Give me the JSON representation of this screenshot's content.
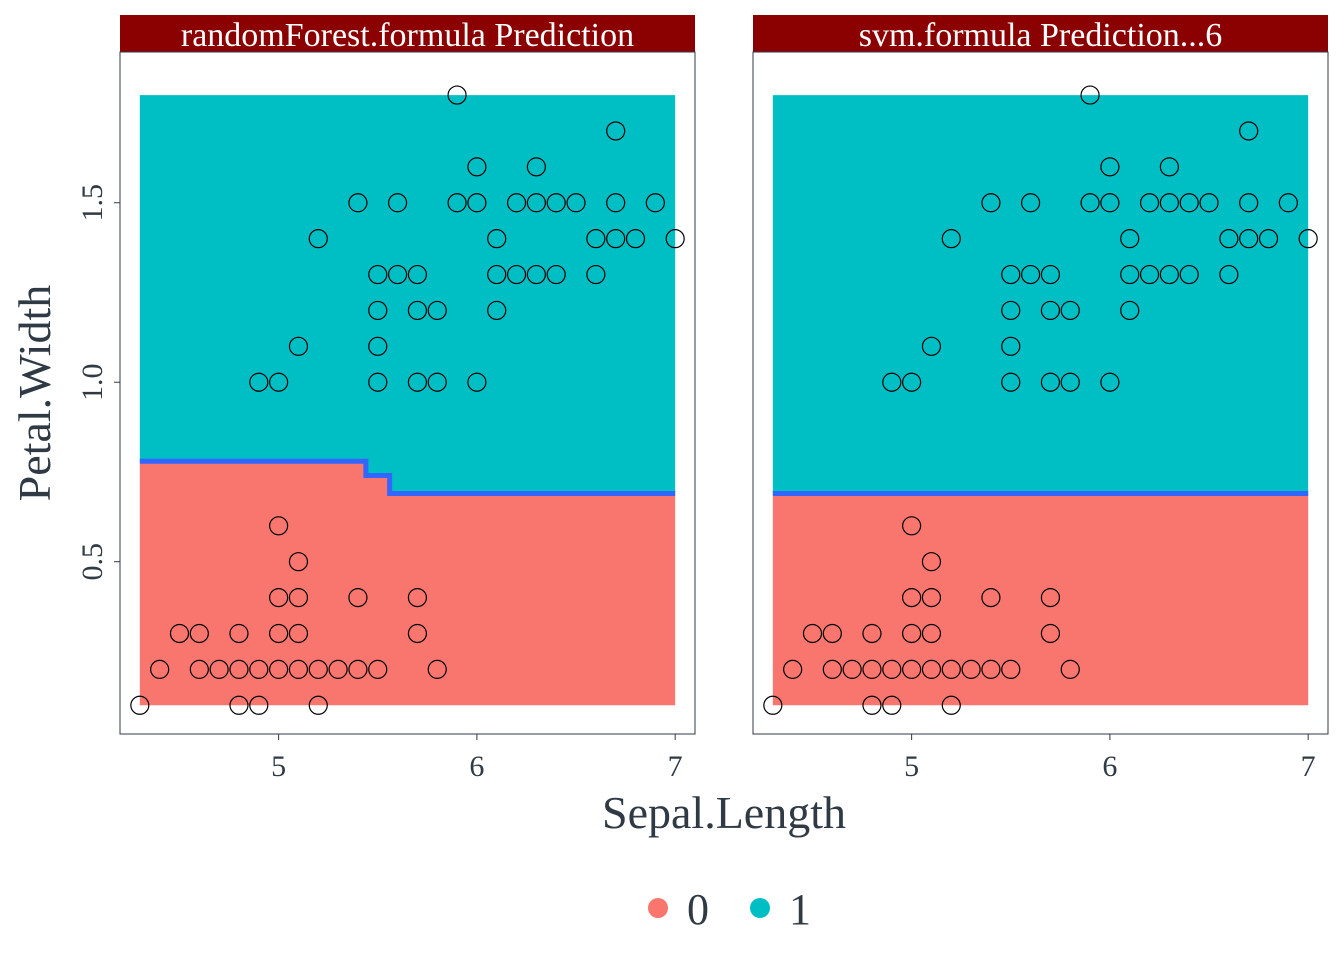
{
  "chart_data": {
    "type": "scatter",
    "xlabel": "Sepal.Length",
    "ylabel": "Petal.Width",
    "xlim": [
      4.2,
      7.1
    ],
    "ylim": [
      0.02,
      1.92
    ],
    "x_ticks": [
      5,
      6,
      7
    ],
    "x_tick_labels": [
      "5",
      "6",
      "7"
    ],
    "y_ticks": [
      0.5,
      1.0,
      1.5
    ],
    "y_tick_labels": [
      "0.5",
      "1.0",
      "1.5"
    ],
    "region_x_range": [
      4.3,
      7.0
    ],
    "region_y_range": [
      0.1,
      1.8
    ],
    "colors": {
      "class_0": "#F8766D",
      "class_1": "#00BFC4",
      "boundary": "#3366FF",
      "strip": "#8B0000",
      "text": "#2f3a45"
    },
    "legend": {
      "position": "bottom",
      "entries": [
        {
          "label": "0",
          "color": "#F8766D"
        },
        {
          "label": "1",
          "color": "#00BFC4"
        }
      ]
    },
    "points": [
      [
        4.3,
        0.1
      ],
      [
        4.4,
        0.2
      ],
      [
        4.5,
        0.3
      ],
      [
        4.6,
        0.2
      ],
      [
        4.6,
        0.3
      ],
      [
        4.7,
        0.2
      ],
      [
        4.8,
        0.1
      ],
      [
        4.8,
        0.2
      ],
      [
        4.8,
        0.3
      ],
      [
        4.9,
        0.1
      ],
      [
        4.9,
        0.2
      ],
      [
        5.0,
        0.2
      ],
      [
        5.0,
        0.3
      ],
      [
        5.0,
        0.4
      ],
      [
        5.0,
        0.6
      ],
      [
        5.1,
        0.2
      ],
      [
        5.1,
        0.3
      ],
      [
        5.1,
        0.4
      ],
      [
        5.1,
        0.5
      ],
      [
        5.2,
        0.1
      ],
      [
        5.2,
        0.2
      ],
      [
        5.3,
        0.2
      ],
      [
        5.4,
        0.2
      ],
      [
        5.4,
        0.4
      ],
      [
        5.5,
        0.2
      ],
      [
        5.7,
        0.3
      ],
      [
        5.7,
        0.4
      ],
      [
        5.8,
        0.2
      ],
      [
        4.9,
        1.0
      ],
      [
        5.0,
        1.0
      ],
      [
        5.1,
        1.1
      ],
      [
        5.2,
        1.4
      ],
      [
        5.4,
        1.5
      ],
      [
        5.5,
        1.0
      ],
      [
        5.5,
        1.1
      ],
      [
        5.5,
        1.2
      ],
      [
        5.5,
        1.3
      ],
      [
        5.6,
        1.3
      ],
      [
        5.6,
        1.5
      ],
      [
        5.7,
        1.0
      ],
      [
        5.7,
        1.2
      ],
      [
        5.7,
        1.3
      ],
      [
        5.8,
        1.0
      ],
      [
        5.8,
        1.2
      ],
      [
        5.9,
        1.5
      ],
      [
        5.9,
        1.8
      ],
      [
        6.0,
        1.0
      ],
      [
        6.0,
        1.5
      ],
      [
        6.0,
        1.6
      ],
      [
        6.1,
        1.2
      ],
      [
        6.1,
        1.3
      ],
      [
        6.1,
        1.4
      ],
      [
        6.2,
        1.3
      ],
      [
        6.2,
        1.5
      ],
      [
        6.3,
        1.3
      ],
      [
        6.3,
        1.5
      ],
      [
        6.3,
        1.6
      ],
      [
        6.4,
        1.3
      ],
      [
        6.4,
        1.5
      ],
      [
        6.5,
        1.5
      ],
      [
        6.6,
        1.3
      ],
      [
        6.6,
        1.4
      ],
      [
        6.7,
        1.4
      ],
      [
        6.7,
        1.5
      ],
      [
        6.7,
        1.7
      ],
      [
        6.8,
        1.4
      ],
      [
        6.9,
        1.5
      ],
      [
        7.0,
        1.4
      ]
    ],
    "panels": [
      {
        "title": "randomForest.formula  Prediction",
        "boundary": [
          [
            4.3,
            0.78
          ],
          [
            5.44,
            0.78
          ],
          [
            5.44,
            0.74
          ],
          [
            5.56,
            0.74
          ],
          [
            5.56,
            0.69
          ],
          [
            7.0,
            0.69
          ]
        ]
      },
      {
        "title": "svm.formula  Prediction...6",
        "boundary": [
          [
            4.3,
            0.69
          ],
          [
            7.0,
            0.69
          ]
        ]
      }
    ]
  }
}
